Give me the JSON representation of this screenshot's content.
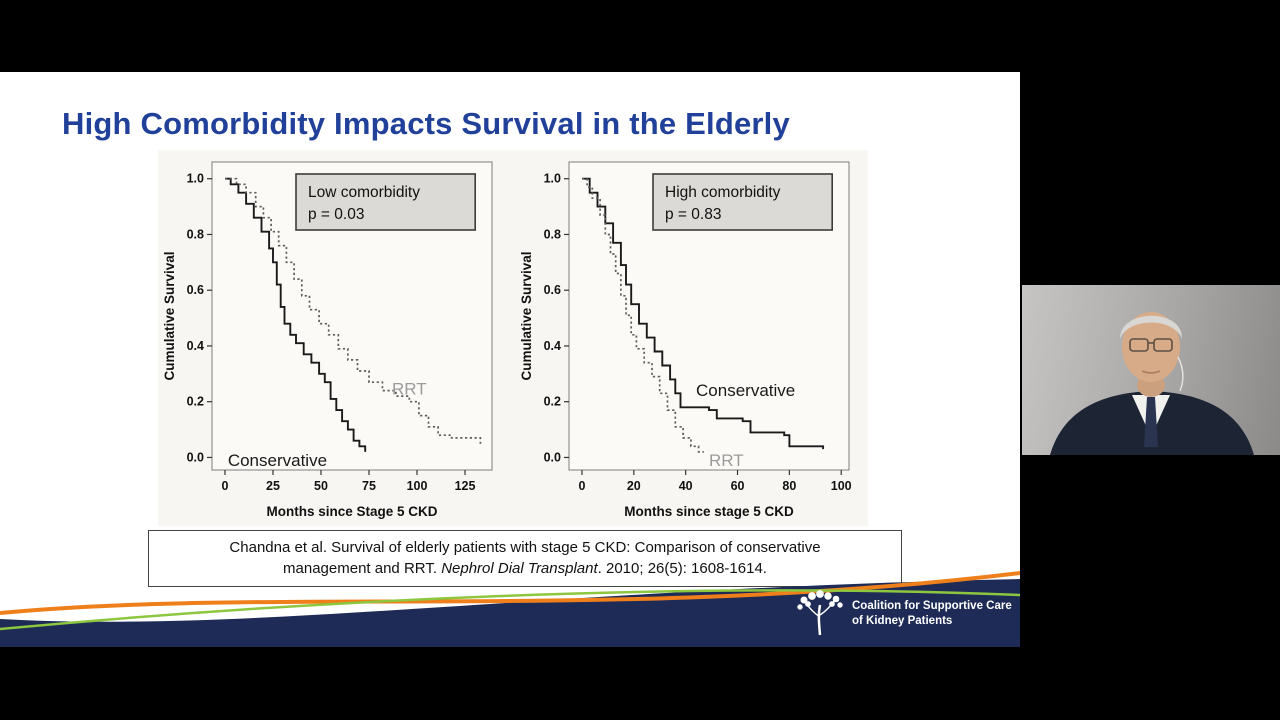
{
  "slide": {
    "title": "High Comorbidity Impacts Survival in the Elderly"
  },
  "citation": {
    "line1": "Chandna  et al. Survival of elderly patients with stage 5 CKD:  Comparison of conservative",
    "line2_pre": "management and RRT.  ",
    "journal": "Nephrol Dial Transplant",
    "line2_post": ". 2010; 26(5): 1608-1614."
  },
  "logo": {
    "line1": "Coalition for Supportive Care",
    "line2": "of Kidney Patients"
  },
  "colors": {
    "title_blue": "#21409a",
    "footer_navy": "#1d2b56",
    "footer_orange": "#ee7f1b",
    "footer_green": "#8dc63f"
  },
  "chart_data": [
    {
      "type": "line",
      "subtype": "kaplan-meier-step",
      "panel": "low-comorbidity",
      "legend_title": "Low comorbidity",
      "legend_p": "p = 0.03",
      "xlabel": "Months since Stage 5 CKD",
      "ylabel": "Cumulative Survival",
      "xlim": [
        0,
        135
      ],
      "ylim": [
        0,
        1.0
      ],
      "xticks": [
        0,
        25,
        50,
        75,
        100,
        125
      ],
      "yticks": [
        "0.0",
        "0.2",
        "0.4",
        "0.6",
        "0.8",
        "1.0"
      ],
      "series": [
        {
          "name": "Conservative",
          "style": "solid",
          "color": "#1a1a1a",
          "points": [
            [
              0,
              1.0
            ],
            [
              3,
              0.98
            ],
            [
              7,
              0.95
            ],
            [
              11,
              0.91
            ],
            [
              15,
              0.86
            ],
            [
              19,
              0.81
            ],
            [
              23,
              0.75
            ],
            [
              25,
              0.7
            ],
            [
              27,
              0.62
            ],
            [
              29,
              0.54
            ],
            [
              31,
              0.48
            ],
            [
              34,
              0.44
            ],
            [
              37,
              0.41
            ],
            [
              41,
              0.37
            ],
            [
              45,
              0.34
            ],
            [
              49,
              0.3
            ],
            [
              52,
              0.27
            ],
            [
              55,
              0.21
            ],
            [
              58,
              0.17
            ],
            [
              61,
              0.13
            ],
            [
              64,
              0.1
            ],
            [
              67,
              0.06
            ],
            [
              70,
              0.04
            ],
            [
              73,
              0.02
            ]
          ],
          "label": {
            "text": "Conservative",
            "x": 1.5,
            "y": -0.03,
            "color": "#1a1a1a"
          }
        },
        {
          "name": "RRT",
          "style": "dotted",
          "color": "#5e5e5e",
          "points": [
            [
              0,
              1.0
            ],
            [
              6,
              0.98
            ],
            [
              11,
              0.95
            ],
            [
              16,
              0.9
            ],
            [
              20,
              0.86
            ],
            [
              24,
              0.81
            ],
            [
              28,
              0.76
            ],
            [
              32,
              0.7
            ],
            [
              36,
              0.64
            ],
            [
              40,
              0.58
            ],
            [
              44,
              0.53
            ],
            [
              49,
              0.48
            ],
            [
              54,
              0.44
            ],
            [
              59,
              0.39
            ],
            [
              64,
              0.35
            ],
            [
              69,
              0.31
            ],
            [
              75,
              0.27
            ],
            [
              82,
              0.24
            ],
            [
              89,
              0.22
            ],
            [
              96,
              0.2
            ],
            [
              101,
              0.15
            ],
            [
              106,
              0.11
            ],
            [
              111,
              0.08
            ],
            [
              118,
              0.07
            ],
            [
              127,
              0.07
            ],
            [
              133,
              0.04
            ]
          ],
          "label": {
            "text": "RRT",
            "x": 87,
            "y": 0.225,
            "color": "#9b9b9b"
          }
        }
      ]
    },
    {
      "type": "line",
      "subtype": "kaplan-meier-step",
      "panel": "high-comorbidity",
      "legend_title": "High comorbidity",
      "legend_p": "p = 0.83",
      "xlabel": "Months since stage 5 CKD",
      "ylabel": "Cumulative Survival",
      "xlim": [
        0,
        100
      ],
      "ylim": [
        0,
        1.0
      ],
      "xticks": [
        0,
        20,
        40,
        60,
        80,
        100
      ],
      "yticks": [
        "0.0",
        "0.2",
        "0.4",
        "0.6",
        "0.8",
        "1.0"
      ],
      "series": [
        {
          "name": "Conservative",
          "style": "solid",
          "color": "#1a1a1a",
          "points": [
            [
              0,
              1.0
            ],
            [
              3,
              0.95
            ],
            [
              6,
              0.9
            ],
            [
              9,
              0.84
            ],
            [
              12,
              0.77
            ],
            [
              15,
              0.69
            ],
            [
              17,
              0.62
            ],
            [
              19,
              0.55
            ],
            [
              22,
              0.48
            ],
            [
              25,
              0.43
            ],
            [
              28,
              0.38
            ],
            [
              31,
              0.33
            ],
            [
              34,
              0.28
            ],
            [
              36,
              0.23
            ],
            [
              38,
              0.18
            ],
            [
              49,
              0.17
            ],
            [
              52,
              0.14
            ],
            [
              62,
              0.13
            ],
            [
              65,
              0.09
            ],
            [
              78,
              0.08
            ],
            [
              80,
              0.04
            ],
            [
              93,
              0.03
            ]
          ],
          "label": {
            "text": "Conservative",
            "x": 44,
            "y": 0.22,
            "color": "#1a1a1a"
          }
        },
        {
          "name": "RRT",
          "style": "dotted",
          "color": "#5e5e5e",
          "points": [
            [
              0,
              1.0
            ],
            [
              2,
              0.97
            ],
            [
              4,
              0.93
            ],
            [
              7,
              0.87
            ],
            [
              9,
              0.8
            ],
            [
              11,
              0.73
            ],
            [
              13,
              0.66
            ],
            [
              15,
              0.58
            ],
            [
              17,
              0.51
            ],
            [
              19,
              0.44
            ],
            [
              21,
              0.39
            ],
            [
              24,
              0.34
            ],
            [
              27,
              0.29
            ],
            [
              30,
              0.23
            ],
            [
              33,
              0.17
            ],
            [
              36,
              0.11
            ],
            [
              39,
              0.07
            ],
            [
              42,
              0.04
            ],
            [
              45,
              0.02
            ],
            [
              47,
              0.02
            ]
          ],
          "label": {
            "text": "RRT",
            "x": 49,
            "y": -0.03,
            "color": "#9b9b9b"
          }
        }
      ]
    }
  ]
}
